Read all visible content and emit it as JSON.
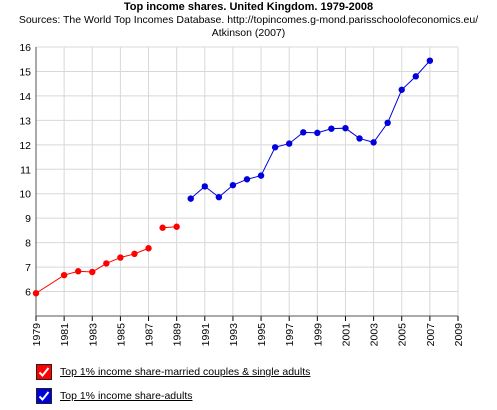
{
  "chart_data": {
    "type": "line",
    "title": "Top income shares. United Kingdom. 1979-2008",
    "subtitle_line1": "Sources: The World Top Incomes Database. http://topincomes.g-mond.parisschoolofeconomics.eu/",
    "subtitle_line2": "Atkinson (2007)",
    "xlim": [
      1979,
      2009
    ],
    "ylim": [
      5,
      16
    ],
    "x_ticks": [
      "1979",
      "1981",
      "1983",
      "1985",
      "1987",
      "1989",
      "1991",
      "1993",
      "1995",
      "1997",
      "1999",
      "2001",
      "2003",
      "2005",
      "2007",
      "2009"
    ],
    "y_ticks": [
      "6",
      "7",
      "8",
      "9",
      "10",
      "11",
      "12",
      "13",
      "14",
      "15",
      "16"
    ],
    "grid": true,
    "legend_position": "bottom-left",
    "series": [
      {
        "name": "Top 1% income share-married couples & single adults",
        "color": "#ff0000",
        "segments": [
          [
            [
              1979,
              5.93
            ],
            [
              1981,
              6.67
            ],
            [
              1982,
              6.83
            ],
            [
              1983,
              6.8
            ],
            [
              1984,
              7.15
            ],
            [
              1985,
              7.39
            ],
            [
              1986,
              7.54
            ],
            [
              1987,
              7.77
            ]
          ],
          [
            [
              1988,
              8.61
            ],
            [
              1989,
              8.65
            ]
          ]
        ]
      },
      {
        "name": "Top 1% income share-adults",
        "color": "#0000dd",
        "segments": [
          [
            [
              1990,
              9.8
            ],
            [
              1991,
              10.3
            ],
            [
              1992,
              9.86
            ],
            [
              1993,
              10.35
            ],
            [
              1994,
              10.59
            ],
            [
              1995,
              10.74
            ],
            [
              1996,
              11.9
            ],
            [
              1997,
              12.05
            ],
            [
              1998,
              12.51
            ],
            [
              1999,
              12.49
            ],
            [
              2000,
              12.66
            ],
            [
              2001,
              12.68
            ],
            [
              2002,
              12.26
            ],
            [
              2003,
              12.1
            ],
            [
              2004,
              12.9
            ],
            [
              2005,
              14.25
            ],
            [
              2006,
              14.8
            ],
            [
              2007,
              15.44
            ]
          ]
        ]
      }
    ]
  },
  "legend": {
    "check_icon": "checkmark-icon"
  }
}
